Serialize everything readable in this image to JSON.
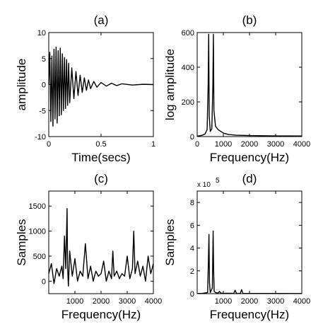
{
  "chart_data": [
    {
      "panel": "(a)",
      "type": "line",
      "title": "(a)",
      "xlabel": "Time(secs)",
      "ylabel": "amplitude",
      "xlim": [
        0,
        1
      ],
      "ylim": [
        -10,
        10
      ],
      "xticks": [
        0,
        0.5,
        1
      ],
      "xtick_labels": [
        "0",
        "0.5",
        "1"
      ],
      "yticks": [
        -10,
        -5,
        0,
        5,
        10
      ],
      "ytick_labels": [
        "-10",
        "-5",
        "0",
        "5",
        "10"
      ],
      "grid": false,
      "series": [
        {
          "x": [
            0,
            0.01,
            0.02,
            0.03,
            0.04,
            0.05,
            0.06,
            0.07,
            0.08,
            0.09,
            0.1,
            0.11,
            0.12,
            0.13,
            0.14,
            0.15,
            0.16,
            0.17,
            0.18,
            0.19,
            0.2,
            0.22,
            0.24,
            0.26,
            0.28,
            0.3,
            0.32,
            0.34,
            0.36,
            0.38,
            0.4,
            0.43,
            0.46,
            0.5,
            0.55,
            0.6,
            0.65,
            0.7,
            0.8,
            0.9,
            1.0
          ],
          "y": [
            0,
            6.2,
            -7.1,
            5.5,
            -8.0,
            6.8,
            -6.6,
            7.2,
            -7.4,
            6.5,
            -6.0,
            7.0,
            -5.8,
            5.9,
            -5.0,
            5.2,
            -4.6,
            4.8,
            -4.0,
            4.1,
            -3.5,
            3.2,
            -2.7,
            2.5,
            -2.1,
            1.8,
            -1.5,
            1.3,
            -1.1,
            0.9,
            -0.8,
            0.6,
            -0.5,
            0.4,
            -0.3,
            0.25,
            -0.2,
            0.15,
            -0.1,
            0.05,
            0
          ]
        }
      ]
    },
    {
      "panel": "(b)",
      "type": "line",
      "title": "(b)",
      "xlabel": "Frequency(Hz)",
      "ylabel": "log amplitude",
      "xlim": [
        0,
        4000
      ],
      "ylim": [
        0,
        600
      ],
      "xticks": [
        0,
        1000,
        2000,
        3000,
        4000
      ],
      "xtick_labels": [
        "0",
        "1000",
        "2000",
        "3000",
        "4000"
      ],
      "yticks": [
        0,
        200,
        400,
        600
      ],
      "ytick_labels": [
        "0",
        "200",
        "400",
        "600"
      ],
      "grid": false,
      "series": [
        {
          "x": [
            0,
            100,
            200,
            300,
            380,
            420,
            440,
            460,
            500,
            560,
            600,
            620,
            640,
            700,
            800,
            1000,
            1200,
            1500,
            2000,
            2500,
            3000,
            3500,
            4000
          ],
          "y": [
            3,
            5,
            8,
            15,
            40,
            300,
            590,
            120,
            30,
            45,
            300,
            590,
            150,
            60,
            40,
            20,
            12,
            8,
            6,
            5,
            4,
            4,
            3
          ]
        }
      ]
    },
    {
      "panel": "(c)",
      "type": "line",
      "title": "(c)",
      "xlabel": "Frequency(Hz)",
      "ylabel": "Samples",
      "xlim": [
        0,
        4000
      ],
      "ylim": [
        -250,
        1800
      ],
      "xticks": [
        1000,
        2000,
        3000,
        4000
      ],
      "xtick_labels": [
        "1000",
        "2000",
        "3000",
        "4000"
      ],
      "yticks": [
        0,
        500,
        1000,
        1500
      ],
      "ytick_labels": [
        "0",
        "500",
        "1000",
        "1500"
      ],
      "grid": false,
      "series": [
        {
          "x": [
            0,
            100,
            200,
            300,
            400,
            500,
            550,
            600,
            650,
            700,
            720,
            750,
            800,
            900,
            1000,
            1100,
            1200,
            1300,
            1400,
            1500,
            1600,
            1700,
            1800,
            1900,
            2000,
            2100,
            2200,
            2300,
            2400,
            2450,
            2500,
            2600,
            2700,
            2800,
            2900,
            3000,
            3100,
            3200,
            3250,
            3300,
            3400,
            3500,
            3600,
            3700,
            3800,
            3900,
            4000
          ],
          "y": [
            150,
            350,
            -50,
            250,
            100,
            300,
            50,
            900,
            250,
            1450,
            300,
            -100,
            600,
            100,
            450,
            0,
            200,
            100,
            750,
            50,
            300,
            0,
            200,
            100,
            150,
            400,
            0,
            200,
            50,
            600,
            100,
            200,
            50,
            150,
            100,
            500,
            50,
            250,
            1000,
            150,
            400,
            100,
            300,
            0,
            500,
            150,
            350
          ]
        }
      ]
    },
    {
      "panel": "(d)",
      "type": "line",
      "title": "(d)",
      "xlabel": "Frequency(Hz)",
      "ylabel": "Samples",
      "ylabel_exponent": "x 10",
      "ylabel_exponent_power": "5",
      "xlim": [
        0,
        4000
      ],
      "ylim": [
        0,
        9
      ],
      "xticks": [
        1000,
        2000,
        3000,
        4000
      ],
      "xtick_labels": [
        "1000",
        "2000",
        "3000",
        "4000"
      ],
      "yticks": [
        0,
        2,
        4,
        6,
        8
      ],
      "ytick_labels": [
        "0",
        "2",
        "4",
        "6",
        "8"
      ],
      "grid": false,
      "series": [
        {
          "x": [
            0,
            200,
            400,
            430,
            450,
            470,
            500,
            580,
            610,
            630,
            650,
            700,
            800,
            850,
            900,
            1000,
            1400,
            1450,
            1500,
            1650,
            1700,
            1750,
            2000,
            3000,
            4000
          ],
          "y": [
            0.02,
            0.03,
            0.1,
            3.0,
            5.2,
            1.0,
            0.1,
            0.5,
            5.5,
            2.0,
            0.2,
            0.1,
            0.05,
            0.2,
            0.05,
            0.04,
            0.03,
            0.3,
            0.03,
            0.03,
            0.35,
            0.03,
            0.02,
            0.02,
            0.01
          ]
        }
      ]
    }
  ]
}
